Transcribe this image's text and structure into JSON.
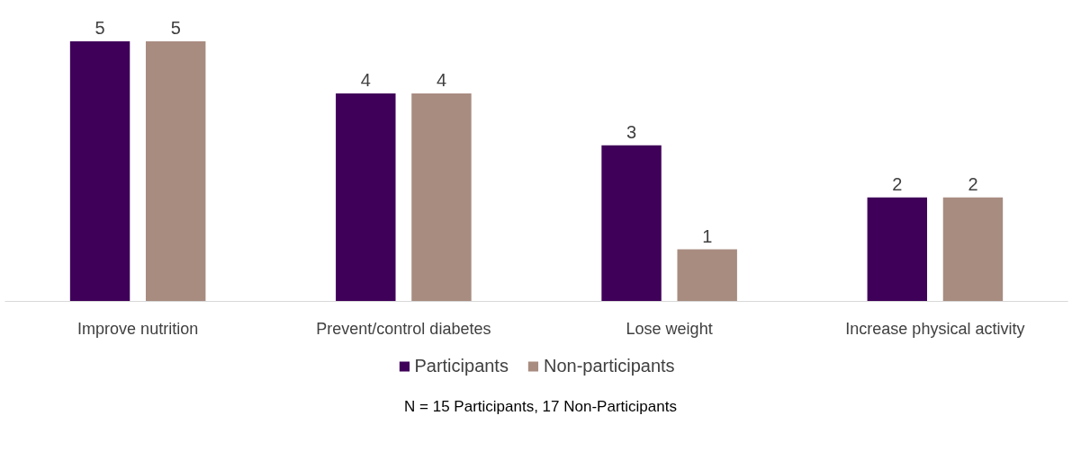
{
  "chart_data": {
    "type": "bar",
    "categories": [
      "Improve nutrition",
      "Prevent/control diabetes",
      "Lose weight",
      "Increase physical activity"
    ],
    "series": [
      {
        "name": "Participants",
        "color": "#3f0059",
        "values": [
          5,
          4,
          3,
          2
        ]
      },
      {
        "name": "Non-participants",
        "color": "#a88c80",
        "values": [
          5,
          4,
          1,
          2
        ]
      }
    ],
    "data_labels": true,
    "legend": "bottom",
    "grid": false,
    "annotations": [
      "N = 15 Participants, 17 Non-Participants"
    ]
  }
}
